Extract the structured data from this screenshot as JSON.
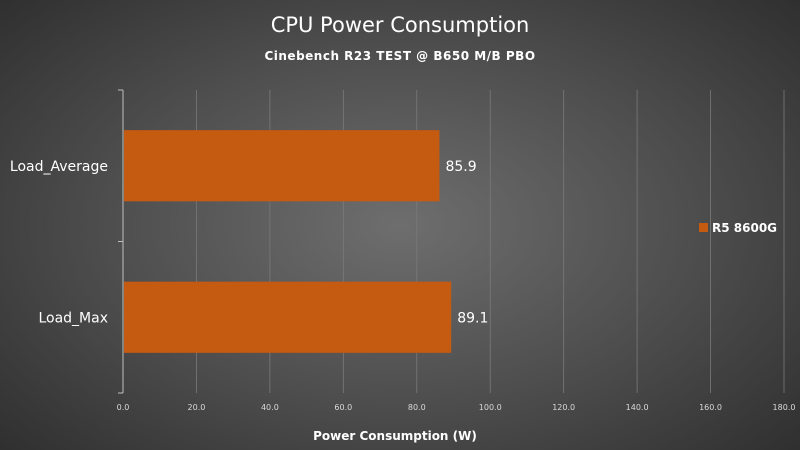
{
  "chart_data": {
    "type": "bar",
    "orientation": "horizontal",
    "title": "CPU Power Consumption",
    "subtitle": "Cinebench R23 TEST @ B650 M/B PBO",
    "categories": [
      "Load_Average",
      "Load_Max"
    ],
    "series": [
      {
        "name": "R5 8600G",
        "values": [
          85.9,
          89.1
        ],
        "color": "#c55a11"
      }
    ],
    "data_labels": [
      "85.9",
      "89.1"
    ],
    "xlabel": "Power Consumption (W)",
    "ylabel": "",
    "xlim": [
      0,
      180
    ],
    "x_ticks": [
      "0.0",
      "20.0",
      "40.0",
      "60.0",
      "80.0",
      "100.0",
      "120.0",
      "140.0",
      "160.0",
      "180.0"
    ],
    "grid": true,
    "legend": "right"
  }
}
